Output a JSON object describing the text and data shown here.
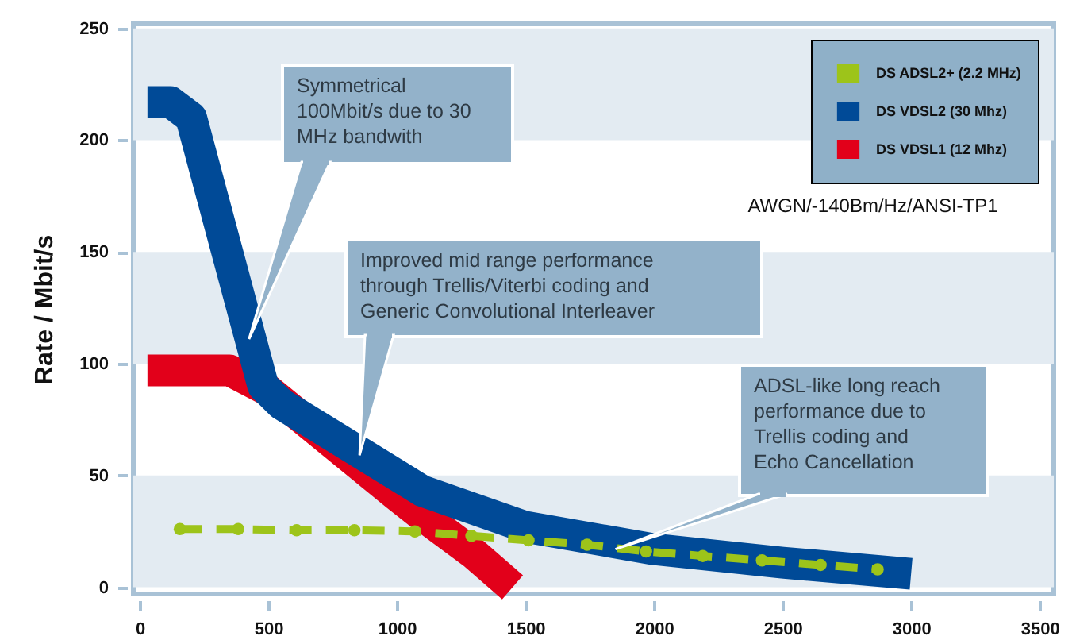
{
  "chart_data": {
    "type": "line",
    "ylabel": "Rate / Mbit/s",
    "xlim": [
      -25,
      3555
    ],
    "xticks": [
      0,
      500,
      1000,
      1500,
      2000,
      2500,
      3000,
      3500
    ],
    "ylim": [
      -3,
      252
    ],
    "yticks": [
      0,
      50,
      100,
      150,
      200,
      250
    ],
    "legend": "top right",
    "grid": false,
    "series": [
      {
        "name": "DS ADSL2+ (2.2 MHz)",
        "color": "#9dc41a",
        "line_style": "dashed",
        "marker": "circle",
        "x": [
          156,
          383,
          610,
          835,
          1070,
          1290,
          1512,
          1740,
          1969,
          2190,
          2420,
          2648,
          2870
        ],
        "values": [
          26,
          26,
          25.5,
          25.5,
          25,
          23,
          21,
          19,
          16,
          14,
          12,
          10,
          8
        ]
      },
      {
        "name": "DS VDSL2 (30 Mhz)",
        "color": "#004a97",
        "line_style": "solid",
        "x": [
          30,
          120,
          200,
          480,
          550,
          1100,
          1500,
          2000,
          2500,
          3000
        ],
        "values": [
          217,
          217,
          210,
          90,
          82,
          43,
          27,
          17,
          11,
          6
        ]
      },
      {
        "name": "DS VDSL1 (12 Mhz)",
        "color": "#e2001a",
        "line_style": "solid",
        "x": [
          30,
          350,
          500,
          1000,
          1100,
          1300,
          1450
        ],
        "values": [
          97,
          97,
          88,
          41,
          32,
          15,
          0
        ]
      }
    ],
    "bands": [
      {
        "axis": "y",
        "from": 0,
        "to": 50,
        "color": "#e3ebf2"
      },
      {
        "axis": "y",
        "from": 100,
        "to": 150,
        "color": "#e3ebf2"
      },
      {
        "axis": "y",
        "from": 200,
        "to": 250,
        "color": "#e3ebf2"
      }
    ],
    "annotations": [
      {
        "text": "Symmetrical\n100Mbit/s due to 30\nMHz bandwith",
        "x": 425,
        "y": 111
      },
      {
        "text": "Improved mid range performance\nthrough Trellis/Viterbi coding and\nGeneric Convolutional Interleaver",
        "x": 855,
        "y": 59
      },
      {
        "text": "ADSL-like long reach\nperformance due to\nTrellis coding and\nEcho Cancellation",
        "x": 1850,
        "y": 17
      },
      "AWGN/-140Bm/Hz/ANSI-TP1"
    ]
  }
}
